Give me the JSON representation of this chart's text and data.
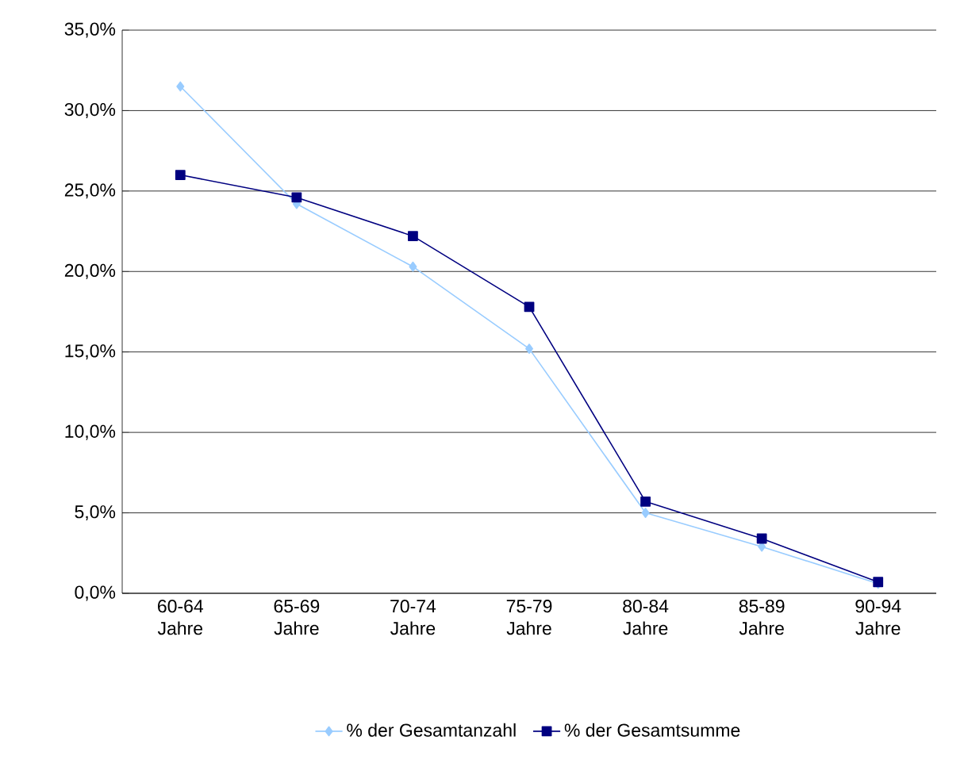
{
  "chart_data": {
    "type": "line",
    "categories": [
      "60-64 Jahre",
      "65-69 Jahre",
      "70-74 Jahre",
      "75-79 Jahre",
      "80-84 Jahre",
      "85-89 Jahre",
      "90-94 Jahre"
    ],
    "series": [
      {
        "name": "% der Gesamtanzahl",
        "color": "#99ccff",
        "marker": "diamond",
        "values": [
          31.5,
          24.2,
          20.3,
          15.2,
          5.0,
          2.9,
          0.6
        ]
      },
      {
        "name": "% der Gesamtsumme",
        "color": "#000080",
        "marker": "square",
        "values": [
          26.0,
          24.6,
          22.2,
          17.8,
          5.7,
          3.4,
          0.7
        ]
      }
    ],
    "ylim": [
      0,
      35
    ],
    "yticks": [
      {
        "value": 0,
        "label": "0,0%"
      },
      {
        "value": 5,
        "label": "5,0%"
      },
      {
        "value": 10,
        "label": "10,0%"
      },
      {
        "value": 15,
        "label": "15,0%"
      },
      {
        "value": 20,
        "label": "20,0%"
      },
      {
        "value": 25,
        "label": "25,0%"
      },
      {
        "value": 30,
        "label": "30,0%"
      },
      {
        "value": 35,
        "label": "35,0%"
      }
    ],
    "grid": "y",
    "legend": "bottom",
    "line_style": "solid"
  }
}
